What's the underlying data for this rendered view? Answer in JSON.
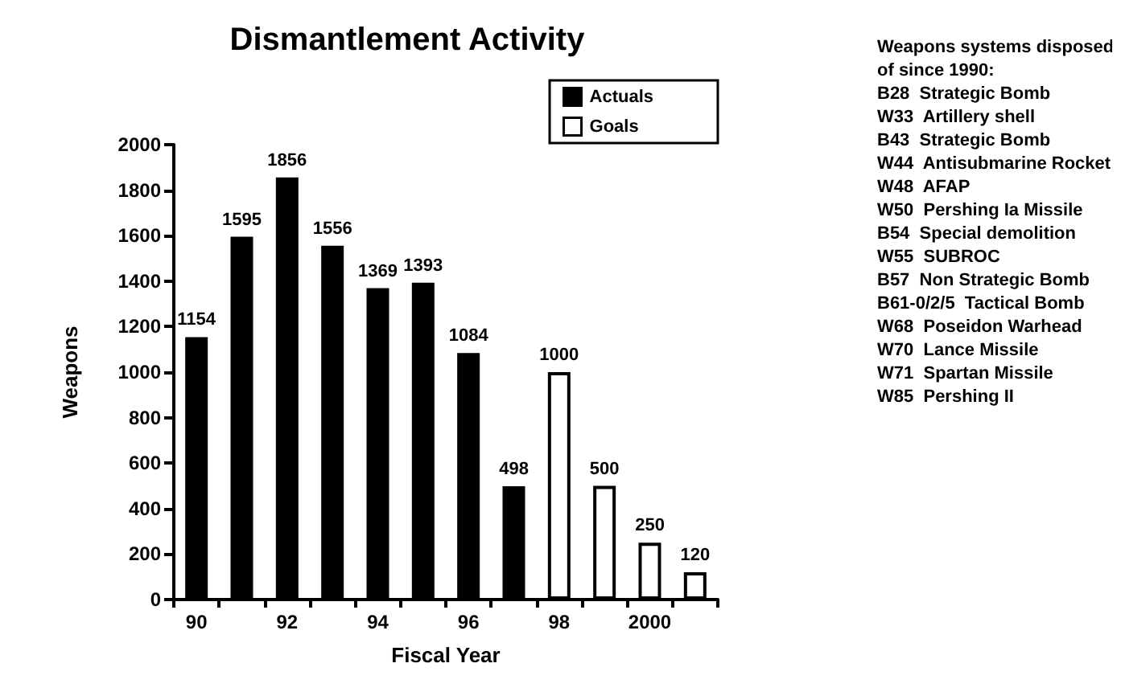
{
  "chart_data": {
    "type": "bar",
    "title": "Dismantlement Activity",
    "xlabel": "Fiscal Year",
    "ylabel": "Weapons",
    "categories": [
      "90",
      null,
      "92",
      null,
      "94",
      null,
      "96",
      null,
      "98",
      null,
      "2000",
      null
    ],
    "series": [
      {
        "name": "Actuals",
        "color": "#000000",
        "values": [
          1154,
          1595,
          1856,
          1556,
          1369,
          1393,
          1084,
          498,
          null,
          null,
          null,
          null
        ]
      },
      {
        "name": "Goals",
        "color": "#ffffff",
        "values": [
          null,
          null,
          null,
          null,
          null,
          null,
          null,
          null,
          1000,
          500,
          250,
          120
        ]
      }
    ],
    "ylim": [
      0,
      2000
    ],
    "yticks": [
      0,
      200,
      400,
      600,
      800,
      1000,
      1200,
      1400,
      1600,
      1800,
      2000
    ],
    "data_labels": true,
    "grid": false,
    "legend": "top right",
    "annotations": [
      "Weapons systems disposed of since 1990:",
      "B28  Strategic Bomb",
      "W33  Artillery shell",
      "B43  Strategic Bomb",
      "W44  Antisubmarine Rocket",
      "W48  AFAP",
      "W50  Pershing Ia Missile",
      "B54  Special demolition",
      "W55  SUBROC",
      "B57  Non Strategic Bomb",
      "B61-0/2/5  Tactical Bomb",
      "W68  Poseidon Warhead",
      "W70  Lance Missile",
      "W71  Spartan Missile",
      "W85  Pershing II"
    ]
  }
}
